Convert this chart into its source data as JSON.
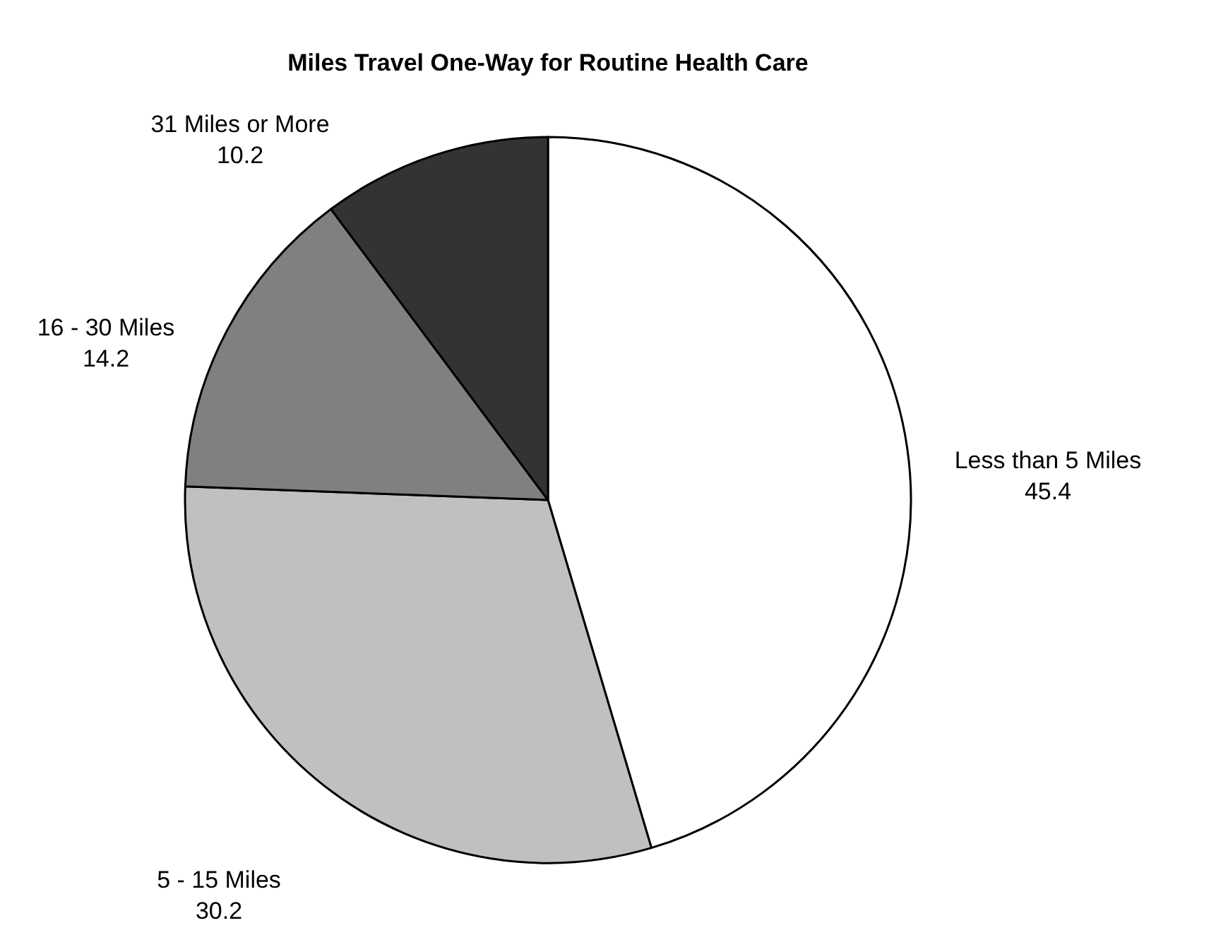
{
  "chart_data": {
    "type": "pie",
    "title": "Miles Travel One-Way for Routine Health Care",
    "categories": [
      "Less than 5 Miles",
      "5 - 15 Miles",
      "16 - 30 Miles",
      "31 Miles or More"
    ],
    "values": [
      45.4,
      30.2,
      14.2,
      10.2
    ],
    "colors": [
      "#ffffff",
      "#c0c0c0",
      "#808080",
      "#333333"
    ],
    "data_labels": true
  }
}
